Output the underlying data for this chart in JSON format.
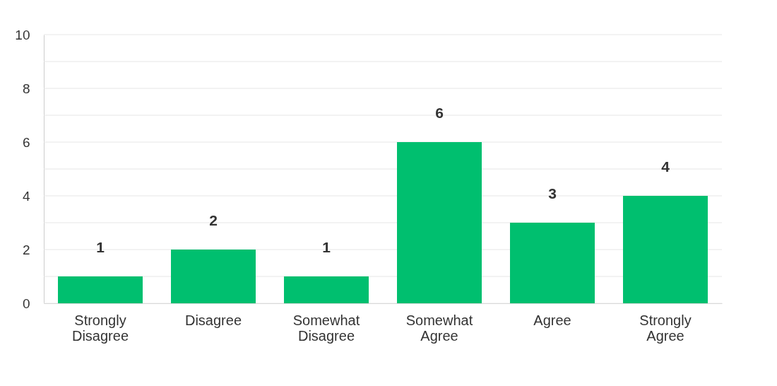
{
  "chart_data": {
    "type": "bar",
    "categories": [
      "Strongly Disagree",
      "Disagree",
      "Somewhat Disagree",
      "Somewhat Agree",
      "Agree",
      "Strongly Agree"
    ],
    "values": [
      1,
      2,
      1,
      6,
      3,
      4
    ],
    "color": "#00bf6f",
    "ylim": [
      0,
      10
    ],
    "yticks": [
      0,
      {
        "value": 1,
        "label": null
      },
      2,
      {
        "value": 3,
        "label": null
      },
      4,
      {
        "value": 5,
        "label": null
      },
      6,
      {
        "value": 7,
        "label": null
      },
      8,
      {
        "value": 9,
        "label": null
      },
      10
    ],
    "grid": "y",
    "data_labels": true
  }
}
